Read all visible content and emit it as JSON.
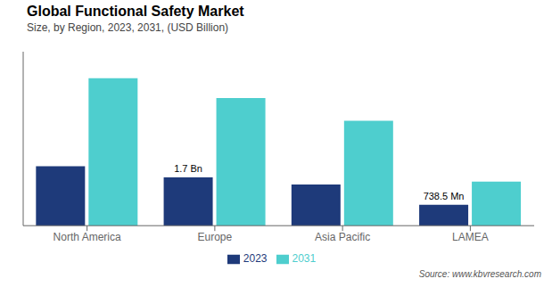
{
  "chart_data": {
    "type": "bar",
    "title": "Global Functional Safety Market",
    "subtitle": "Size, by Region, 2023, 2031, (USD Billion)",
    "source": "Source: www.kbvresearch.com",
    "categories": [
      "North America",
      "Europe",
      "Asia Pacific",
      "LAMEA"
    ],
    "series": [
      {
        "name": "2023",
        "color": "#1e3a7a",
        "values": [
          2.1,
          1.7,
          1.45,
          0.7385
        ]
      },
      {
        "name": "2031",
        "color": "#4ecece",
        "values": [
          5.2,
          4.5,
          3.7,
          1.55
        ]
      }
    ],
    "annotations": [
      {
        "text": "1.7 Bn",
        "series": "2023",
        "category": "Europe"
      },
      {
        "text": "738.5 Mn",
        "series": "2023",
        "category": "LAMEA"
      }
    ],
    "ylim": [
      0,
      6.136
    ],
    "yticks": [],
    "grid": false,
    "legend": "bottom",
    "tick_labels": "x"
  }
}
